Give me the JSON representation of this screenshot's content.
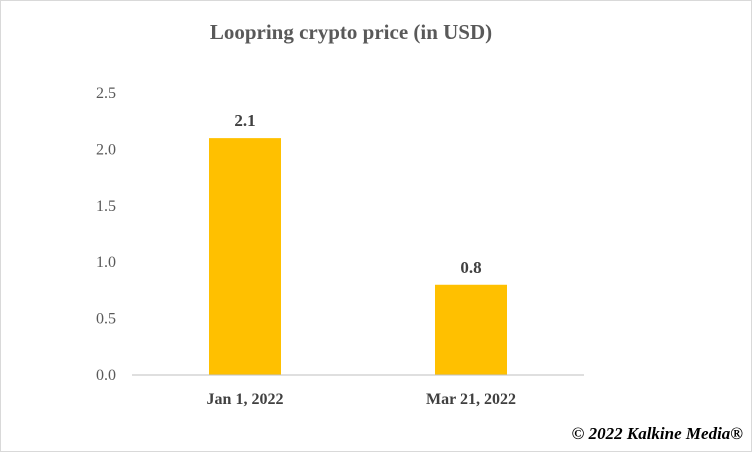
{
  "chart_data": {
    "type": "bar",
    "title": "Loopring crypto price (in USD)",
    "categories": [
      "Jan 1, 2022",
      "Mar 21, 2022"
    ],
    "values": [
      2.1,
      0.8
    ],
    "data_labels": [
      "2.1",
      "0.8"
    ],
    "ylim": [
      0,
      2.5
    ],
    "yticks": [
      "0.0",
      "0.5",
      "1.0",
      "1.5",
      "2.0",
      "2.5"
    ],
    "xlabel": "",
    "ylabel": "",
    "grid": false,
    "bar_color": "#FFC000",
    "axis_color": "#bfbfbf"
  },
  "footer": {
    "copyright": "© 2022 Kalkine Media®"
  }
}
